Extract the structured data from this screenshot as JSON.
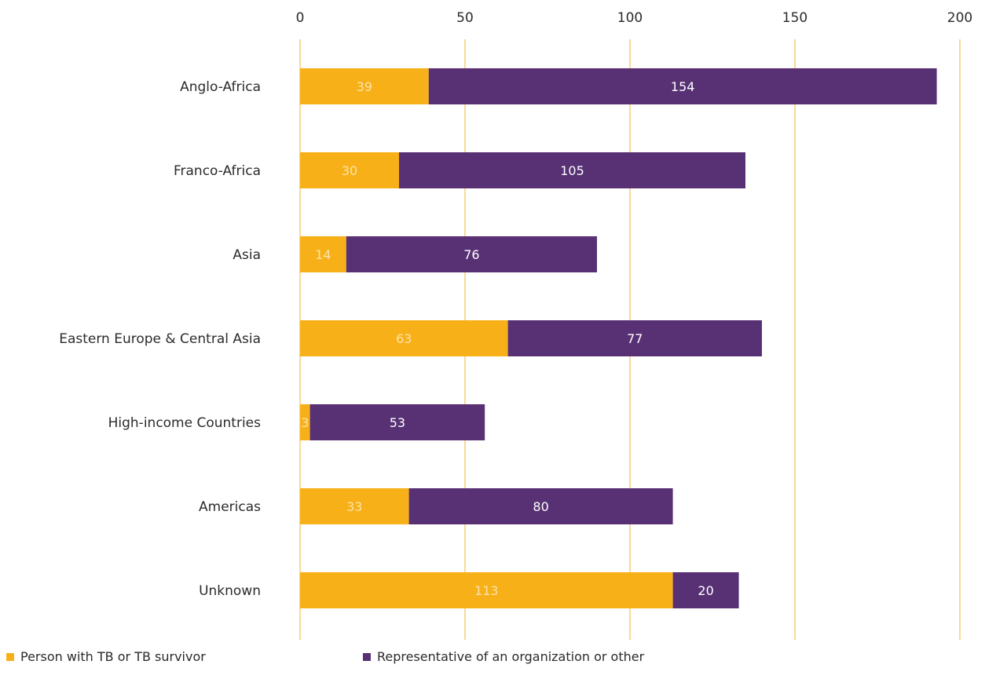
{
  "chart_data": {
    "type": "bar",
    "orientation": "horizontal",
    "stacked": true,
    "categories": [
      "Anglo-Africa",
      "Franco-Africa",
      "Asia",
      "Eastern Europe & Central Asia",
      "High-income Countries",
      "Americas",
      "Unknown"
    ],
    "series": [
      {
        "name": "Person with TB or TB survivor",
        "values": [
          39,
          30,
          14,
          63,
          3,
          33,
          113
        ],
        "color": "#F8B019",
        "label_color": "#FBE3A8"
      },
      {
        "name": "Representative of an organization or other",
        "values": [
          154,
          105,
          76,
          77,
          53,
          80,
          20
        ],
        "color": "#583175",
        "label_color": "#FFFFFF"
      }
    ],
    "xlim": [
      0,
      200
    ],
    "xticks": [
      0,
      50,
      100,
      150,
      200
    ],
    "xaxis_position": "top",
    "grid": true,
    "grid_color": "#F5C75A",
    "legend_position": "bottom-left",
    "title": "",
    "xlabel": "",
    "ylabel": ""
  }
}
